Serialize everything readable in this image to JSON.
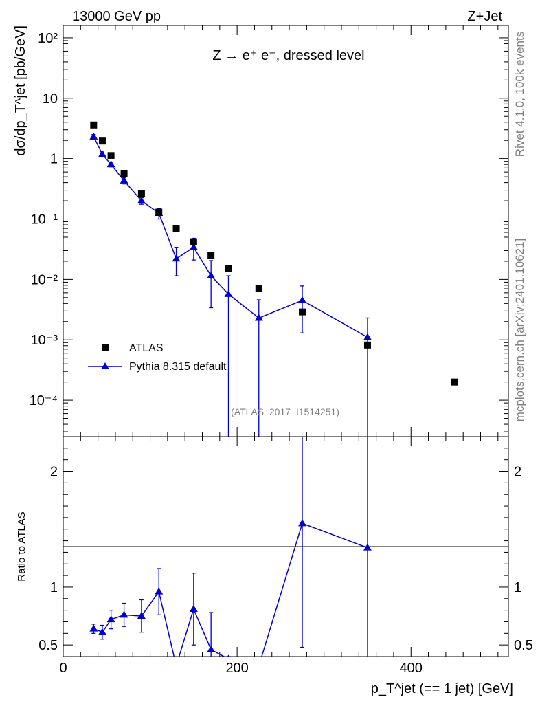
{
  "header": {
    "left_label": "13000 GeV pp",
    "right_label": "Z+Jet"
  },
  "side_labels": {
    "rivet": "Rivet 4.1.0,  100k events",
    "mcplots": "mcplots.cern.ch [arXiv:2401.10621]"
  },
  "chart_data": [
    {
      "type": "scatter",
      "panel": "main",
      "title": "Z → e⁺ e⁻, dressed level",
      "analysis_id": "(ATLAS_2017_I1514251)",
      "xlabel": "p_T^jet (== 1 jet) [GeV]",
      "ylabel": "dσ/dp_T^jet [pb/GeV]",
      "xlim": [
        0,
        512
      ],
      "ylim": [
        2.5e-05,
        160
      ],
      "yscale": "log",
      "y_ticks": [
        "10⁻⁴",
        "10⁻³",
        "10⁻²",
        "10⁻¹",
        "1",
        "10",
        "10²"
      ],
      "series": [
        {
          "name": "ATLAS",
          "marker": "square",
          "color": "#000000",
          "x": [
            35,
            45,
            55,
            70,
            90,
            110,
            130,
            150,
            170,
            190,
            225,
            275,
            350,
            450
          ],
          "values": [
            3.6,
            1.95,
            1.12,
            0.56,
            0.26,
            0.13,
            0.07,
            0.042,
            0.025,
            0.015,
            0.0071,
            0.0029,
            0.00082,
            0.0002
          ]
        },
        {
          "name": "Pythia 8.315 default",
          "marker": "triangle",
          "line": true,
          "color": "#0000cc",
          "x": [
            35,
            45,
            55,
            70,
            90,
            110,
            130,
            150,
            170,
            190,
            225,
            275,
            350
          ],
          "values": [
            2.3,
            1.18,
            0.8,
            0.43,
            0.2,
            0.125,
            0.022,
            0.034,
            0.0115,
            0.0057,
            0.0023,
            0.0045,
            0.0011
          ],
          "err_lo": [
            2.1,
            1.07,
            0.73,
            0.38,
            0.175,
            0.1,
            0.0115,
            0.021,
            0.0034,
            5e-06,
            5e-06,
            0.0013,
            5e-06
          ],
          "err_hi": [
            2.5,
            1.29,
            0.88,
            0.48,
            0.225,
            0.15,
            0.034,
            0.048,
            0.0205,
            0.0115,
            0.0046,
            0.0078,
            0.0023
          ]
        }
      ]
    },
    {
      "type": "scatter",
      "panel": "ratio",
      "ylabel": "Ratio to ATLAS",
      "xlim": [
        0,
        512
      ],
      "ylim": [
        0.4,
        2.3
      ],
      "x_ticks": [
        "0",
        "200",
        "400"
      ],
      "y_ticks": [
        "0.5",
        "1",
        "2"
      ],
      "reference_line": 1,
      "series": [
        {
          "name": "Pythia 8.315 default",
          "marker": "triangle",
          "color": "#0000cc",
          "x": [
            35,
            45,
            55,
            70,
            90,
            110,
            130,
            150,
            170,
            190,
            225,
            275,
            350
          ],
          "values": [
            0.64,
            0.61,
            0.72,
            0.76,
            0.75,
            0.96,
            0.32,
            0.81,
            0.46,
            0.38,
            0.32,
            1.55,
            1.34
          ],
          "err_lo": [
            0.6,
            0.55,
            0.64,
            0.66,
            0.61,
            0.76,
            0.3,
            0.5,
            0.3,
            0.3,
            0.3,
            0.48,
            0.3
          ],
          "err_hi": [
            0.68,
            0.67,
            0.8,
            0.86,
            0.89,
            1.16,
            0.34,
            1.12,
            0.78,
            0.4,
            0.34,
            2.5,
            2.5
          ]
        }
      ]
    }
  ]
}
